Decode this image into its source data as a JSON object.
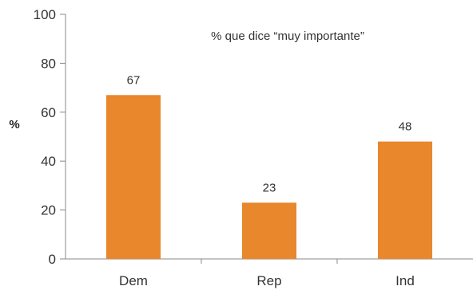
{
  "chart_data": {
    "type": "bar",
    "categories": [
      "Dem",
      "Rep",
      "Ind"
    ],
    "values": [
      67,
      23,
      48
    ],
    "data_labels": [
      "67",
      "23",
      "48"
    ],
    "ylabel": "%",
    "annotation": "% que dice “muy importante”",
    "ylim": [
      0,
      100
    ],
    "yticks": [
      "0",
      "20",
      "40",
      "60",
      "80",
      "100"
    ],
    "grid": false,
    "bar_color": "#e8872b"
  }
}
